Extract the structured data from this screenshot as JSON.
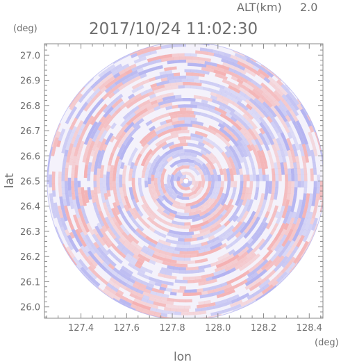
{
  "header": {
    "altitude_label": "ALT(km)",
    "altitude_value": "2.0",
    "timestamp": "2017/10/24 11:02:30"
  },
  "chart_data": {
    "type": "heatmap",
    "xlabel": "lon",
    "ylabel": "lat",
    "x_unit": "(deg)",
    "y_unit": "(deg)",
    "xlim": [
      127.24,
      128.46
    ],
    "ylim": [
      25.955,
      27.045
    ],
    "x_ticks": [
      "127.4",
      "127.6",
      "127.8",
      "128.0",
      "128.2",
      "128.4"
    ],
    "y_ticks": [
      "26.0",
      "26.1",
      "26.2",
      "26.3",
      "26.4",
      "26.5",
      "26.6",
      "26.7",
      "26.8",
      "26.9",
      "27.0"
    ],
    "center_lon": 127.86,
    "center_lat": 26.5,
    "coverage": "circular",
    "grid": false,
    "colors": {
      "positive": "#f4a6a6",
      "negative": "#a8a8ee",
      "neutral": "#f4f2fb",
      "axis": "#888888"
    }
  }
}
